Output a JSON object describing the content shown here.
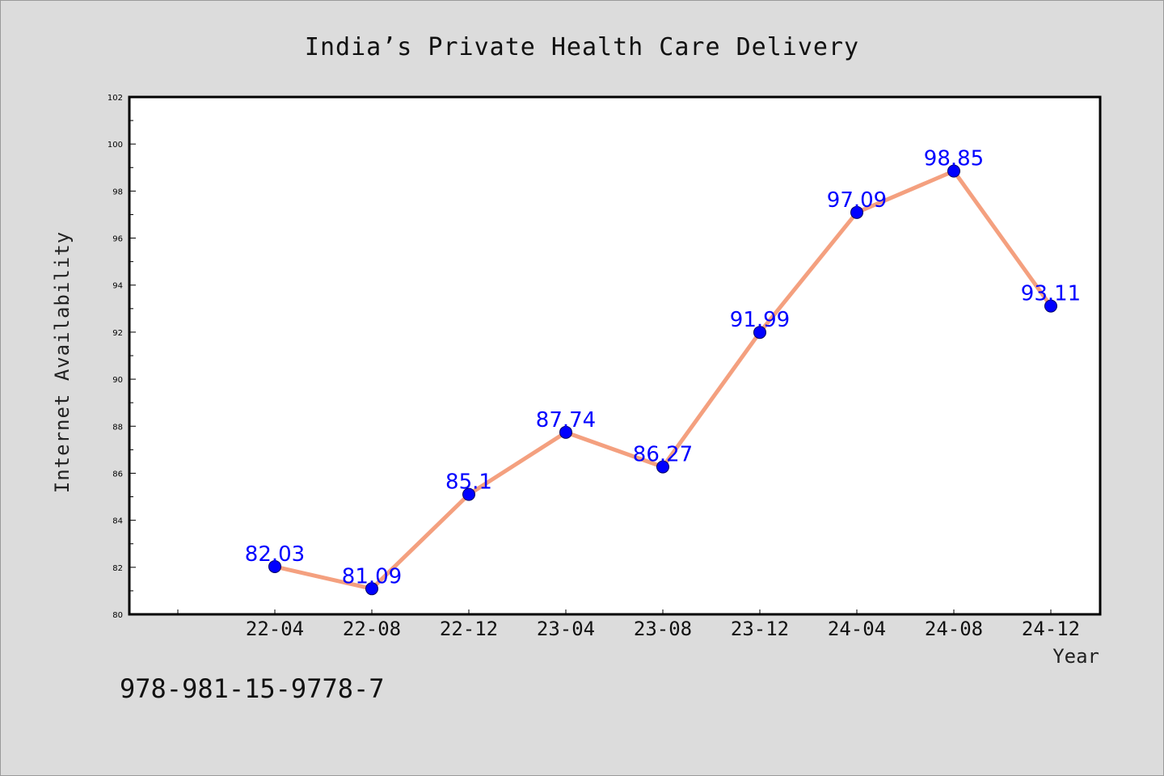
{
  "chart_data": {
    "type": "line",
    "title": "India’s Private Health Care Delivery",
    "xlabel": "Year",
    "ylabel": "Internet Availability",
    "categories": [
      "22-04",
      "22-08",
      "22-12",
      "23-04",
      "23-08",
      "23-12",
      "24-04",
      "24-08",
      "24-12"
    ],
    "values": [
      82.03,
      81.09,
      85.1,
      87.74,
      86.27,
      91.99,
      97.09,
      98.85,
      93.11
    ],
    "data_labels": [
      "82.03",
      "81.09",
      "85.1",
      "87.74",
      "86.27",
      "91.99",
      "97.09",
      "98.85",
      "93.11"
    ],
    "ylim": [
      80,
      102
    ],
    "yticks": [
      "80",
      "82",
      "84",
      "86",
      "88",
      "90",
      "92",
      "94",
      "96",
      "98",
      "100",
      "102"
    ],
    "grid": false,
    "line_color": "#f4a07f",
    "marker_color": "#0000ff",
    "label_color": "#0000ff"
  },
  "footer": {
    "text": "978-981-15-9778-7"
  },
  "colors": {
    "background": "#dcdcdc",
    "plot_background": "#ffffff"
  }
}
